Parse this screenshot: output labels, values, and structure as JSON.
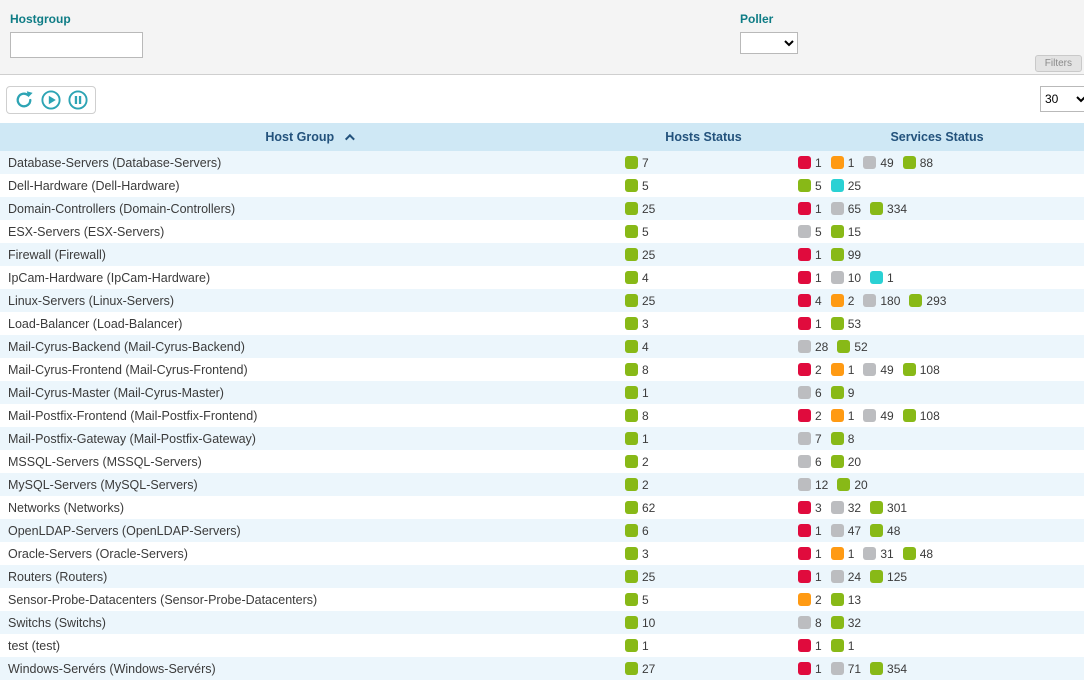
{
  "filters": {
    "hostgroup": {
      "label": "Hostgroup",
      "value": "",
      "placeholder": ""
    },
    "poller": {
      "label": "Poller",
      "value": ""
    },
    "filters_button_label": "Filters"
  },
  "toolbar": {
    "icons": {
      "refresh": "refresh-icon",
      "play": "play-circle-icon",
      "pause": "pause-circle-icon"
    },
    "page_size": "30"
  },
  "colors": {
    "ok": "#88b917",
    "critical": "#e00b3d",
    "warning": "#ff9a13",
    "unknown": "#bcbdc0",
    "pending": "#2ad1d4",
    "accent_teal": "#2da4b4",
    "header_bg": "#cfe8f5",
    "header_text": "#23527c"
  },
  "table": {
    "columns": [
      "Host Group",
      "Hosts Status",
      "Services Status"
    ],
    "sort": {
      "column": "Host Group",
      "direction": "asc"
    },
    "rows": [
      {
        "name": "Database-Servers (Database-Servers)",
        "hosts": [
          {
            "status": "ok",
            "count": "7"
          }
        ],
        "services": [
          {
            "status": "critical",
            "count": "1"
          },
          {
            "status": "warning",
            "count": "1"
          },
          {
            "status": "unknown",
            "count": "49"
          },
          {
            "status": "ok",
            "count": "88"
          }
        ]
      },
      {
        "name": "Dell-Hardware (Dell-Hardware)",
        "hosts": [
          {
            "status": "ok",
            "count": "5"
          }
        ],
        "services": [
          {
            "status": "ok",
            "count": "5"
          },
          {
            "status": "pending",
            "count": "25"
          }
        ]
      },
      {
        "name": "Domain-Controllers (Domain-Controllers)",
        "hosts": [
          {
            "status": "ok",
            "count": "25"
          }
        ],
        "services": [
          {
            "status": "critical",
            "count": "1"
          },
          {
            "status": "unknown",
            "count": "65"
          },
          {
            "status": "ok",
            "count": "334"
          }
        ]
      },
      {
        "name": "ESX-Servers (ESX-Servers)",
        "hosts": [
          {
            "status": "ok",
            "count": "5"
          }
        ],
        "services": [
          {
            "status": "unknown",
            "count": "5"
          },
          {
            "status": "ok",
            "count": "15"
          }
        ]
      },
      {
        "name": "Firewall (Firewall)",
        "hosts": [
          {
            "status": "ok",
            "count": "25"
          }
        ],
        "services": [
          {
            "status": "critical",
            "count": "1"
          },
          {
            "status": "ok",
            "count": "99"
          }
        ]
      },
      {
        "name": "IpCam-Hardware (IpCam-Hardware)",
        "hosts": [
          {
            "status": "ok",
            "count": "4"
          }
        ],
        "services": [
          {
            "status": "critical",
            "count": "1"
          },
          {
            "status": "unknown",
            "count": "10"
          },
          {
            "status": "pending",
            "count": "1"
          }
        ]
      },
      {
        "name": "Linux-Servers (Linux-Servers)",
        "hosts": [
          {
            "status": "ok",
            "count": "25"
          }
        ],
        "services": [
          {
            "status": "critical",
            "count": "4"
          },
          {
            "status": "warning",
            "count": "2"
          },
          {
            "status": "unknown",
            "count": "180"
          },
          {
            "status": "ok",
            "count": "293"
          }
        ]
      },
      {
        "name": "Load-Balancer (Load-Balancer)",
        "hosts": [
          {
            "status": "ok",
            "count": "3"
          }
        ],
        "services": [
          {
            "status": "critical",
            "count": "1"
          },
          {
            "status": "ok",
            "count": "53"
          }
        ]
      },
      {
        "name": "Mail-Cyrus-Backend (Mail-Cyrus-Backend)",
        "hosts": [
          {
            "status": "ok",
            "count": "4"
          }
        ],
        "services": [
          {
            "status": "unknown",
            "count": "28"
          },
          {
            "status": "ok",
            "count": "52"
          }
        ]
      },
      {
        "name": "Mail-Cyrus-Frontend (Mail-Cyrus-Frontend)",
        "hosts": [
          {
            "status": "ok",
            "count": "8"
          }
        ],
        "services": [
          {
            "status": "critical",
            "count": "2"
          },
          {
            "status": "warning",
            "count": "1"
          },
          {
            "status": "unknown",
            "count": "49"
          },
          {
            "status": "ok",
            "count": "108"
          }
        ]
      },
      {
        "name": "Mail-Cyrus-Master (Mail-Cyrus-Master)",
        "hosts": [
          {
            "status": "ok",
            "count": "1"
          }
        ],
        "services": [
          {
            "status": "unknown",
            "count": "6"
          },
          {
            "status": "ok",
            "count": "9"
          }
        ]
      },
      {
        "name": "Mail-Postfix-Frontend (Mail-Postfix-Frontend)",
        "hosts": [
          {
            "status": "ok",
            "count": "8"
          }
        ],
        "services": [
          {
            "status": "critical",
            "count": "2"
          },
          {
            "status": "warning",
            "count": "1"
          },
          {
            "status": "unknown",
            "count": "49"
          },
          {
            "status": "ok",
            "count": "108"
          }
        ]
      },
      {
        "name": "Mail-Postfix-Gateway (Mail-Postfix-Gateway)",
        "hosts": [
          {
            "status": "ok",
            "count": "1"
          }
        ],
        "services": [
          {
            "status": "unknown",
            "count": "7"
          },
          {
            "status": "ok",
            "count": "8"
          }
        ]
      },
      {
        "name": "MSSQL-Servers (MSSQL-Servers)",
        "hosts": [
          {
            "status": "ok",
            "count": "2"
          }
        ],
        "services": [
          {
            "status": "unknown",
            "count": "6"
          },
          {
            "status": "ok",
            "count": "20"
          }
        ]
      },
      {
        "name": "MySQL-Servers (MySQL-Servers)",
        "hosts": [
          {
            "status": "ok",
            "count": "2"
          }
        ],
        "services": [
          {
            "status": "unknown",
            "count": "12"
          },
          {
            "status": "ok",
            "count": "20"
          }
        ]
      },
      {
        "name": "Networks (Networks)",
        "hosts": [
          {
            "status": "ok",
            "count": "62"
          }
        ],
        "services": [
          {
            "status": "critical",
            "count": "3"
          },
          {
            "status": "unknown",
            "count": "32"
          },
          {
            "status": "ok",
            "count": "301"
          }
        ]
      },
      {
        "name": "OpenLDAP-Servers (OpenLDAP-Servers)",
        "hosts": [
          {
            "status": "ok",
            "count": "6"
          }
        ],
        "services": [
          {
            "status": "critical",
            "count": "1"
          },
          {
            "status": "unknown",
            "count": "47"
          },
          {
            "status": "ok",
            "count": "48"
          }
        ]
      },
      {
        "name": "Oracle-Servers (Oracle-Servers)",
        "hosts": [
          {
            "status": "ok",
            "count": "3"
          }
        ],
        "services": [
          {
            "status": "critical",
            "count": "1"
          },
          {
            "status": "warning",
            "count": "1"
          },
          {
            "status": "unknown",
            "count": "31"
          },
          {
            "status": "ok",
            "count": "48"
          }
        ]
      },
      {
        "name": "Routers (Routers)",
        "hosts": [
          {
            "status": "ok",
            "count": "25"
          }
        ],
        "services": [
          {
            "status": "critical",
            "count": "1"
          },
          {
            "status": "unknown",
            "count": "24"
          },
          {
            "status": "ok",
            "count": "125"
          }
        ]
      },
      {
        "name": "Sensor-Probe-Datacenters (Sensor-Probe-Datacenters)",
        "hosts": [
          {
            "status": "ok",
            "count": "5"
          }
        ],
        "services": [
          {
            "status": "warning",
            "count": "2"
          },
          {
            "status": "ok",
            "count": "13"
          }
        ]
      },
      {
        "name": "Switchs (Switchs)",
        "hosts": [
          {
            "status": "ok",
            "count": "10"
          }
        ],
        "services": [
          {
            "status": "unknown",
            "count": "8"
          },
          {
            "status": "ok",
            "count": "32"
          }
        ]
      },
      {
        "name": "test (test)",
        "hosts": [
          {
            "status": "ok",
            "count": "1"
          }
        ],
        "services": [
          {
            "status": "critical",
            "count": "1"
          },
          {
            "status": "ok",
            "count": "1"
          }
        ]
      },
      {
        "name": "Windows-Servérs (Windows-Servérs)",
        "hosts": [
          {
            "status": "ok",
            "count": "27"
          }
        ],
        "services": [
          {
            "status": "critical",
            "count": "1"
          },
          {
            "status": "unknown",
            "count": "71"
          },
          {
            "status": "ok",
            "count": "354"
          }
        ]
      }
    ]
  }
}
